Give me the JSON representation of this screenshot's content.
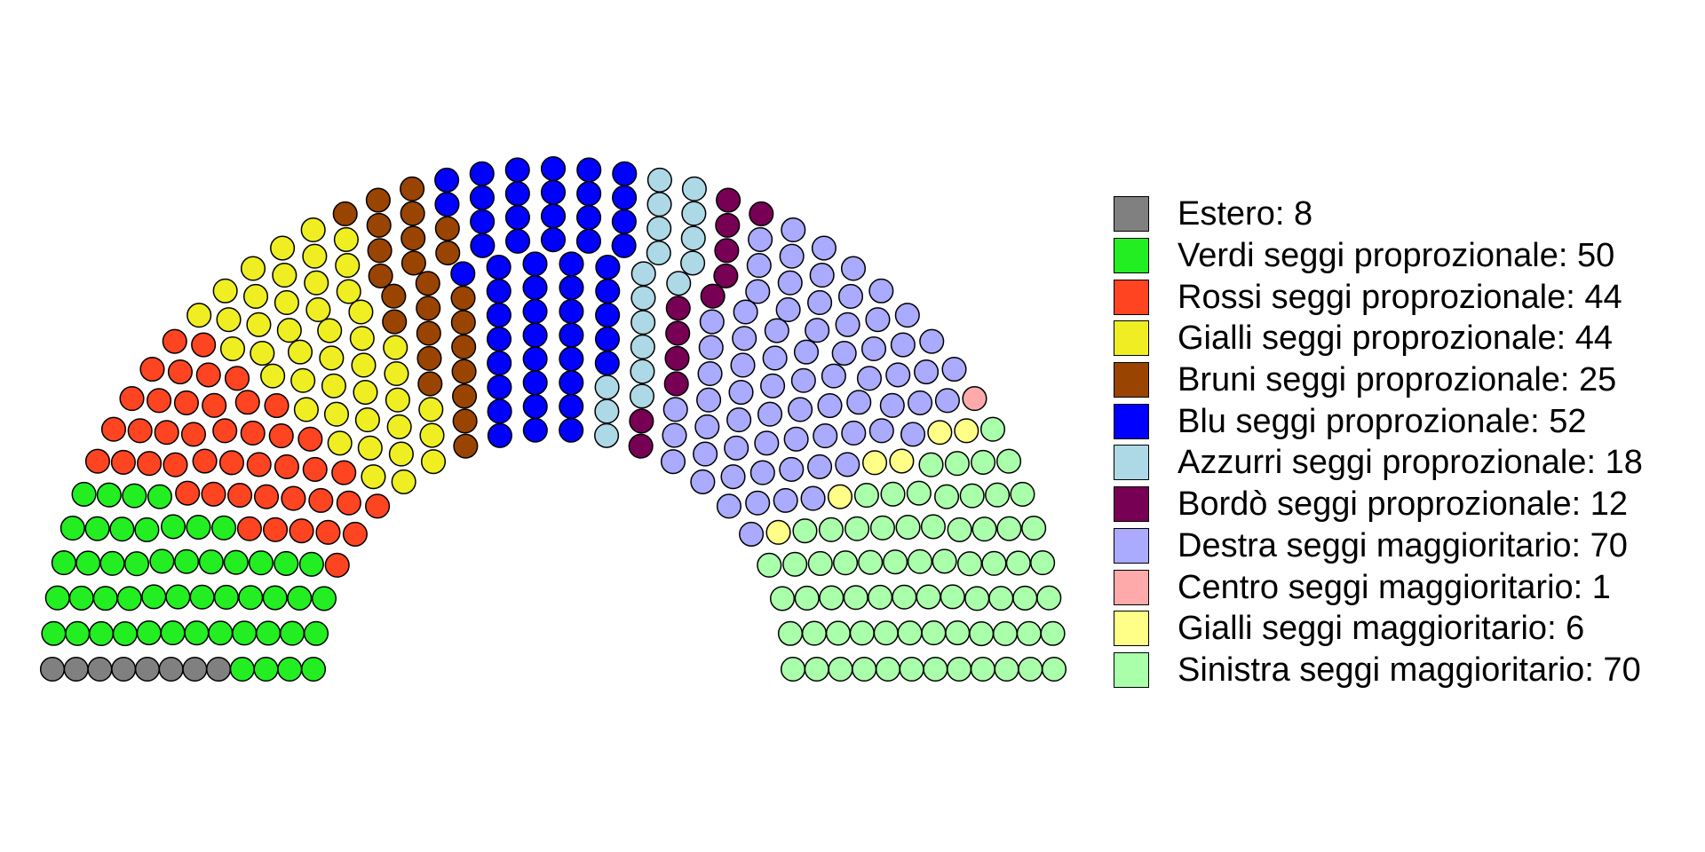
{
  "chart_data": {
    "type": "parliament",
    "parties": [
      {
        "label": "Estero: 8",
        "seats": 8,
        "color": "#808080"
      },
      {
        "label": "Verdi seggi proprozionale: 50",
        "seats": 50,
        "color": "#22ee22"
      },
      {
        "label": "Rossi seggi proprozionale: 44",
        "seats": 44,
        "color": "#ff4422"
      },
      {
        "label": "Gialli seggi proprozionale: 44",
        "seats": 44,
        "color": "#eeee22"
      },
      {
        "label": "Bruni seggi proprozionale: 25",
        "seats": 25,
        "color": "#994400"
      },
      {
        "label": "Blu seggi proprozionale: 52",
        "seats": 52,
        "color": "#0000ff"
      },
      {
        "label": "Azzurri seggi proprozionale: 18",
        "seats": 18,
        "color": "#add8e6"
      },
      {
        "label": "Bordò seggi proprozionale: 12",
        "seats": 12,
        "color": "#770055"
      },
      {
        "label": "Destra seggi maggioritario: 70",
        "seats": 70,
        "color": "#aaaaff"
      },
      {
        "label": "Centro seggi maggioritario: 1",
        "seats": 1,
        "color": "#ffaaaa"
      },
      {
        "label": "Gialli seggi maggioritario: 6",
        "seats": 6,
        "color": "#ffff88"
      },
      {
        "label": "Sinistra seggi maggioritario: 70",
        "seats": 70,
        "color": "#aaffaa"
      }
    ]
  }
}
